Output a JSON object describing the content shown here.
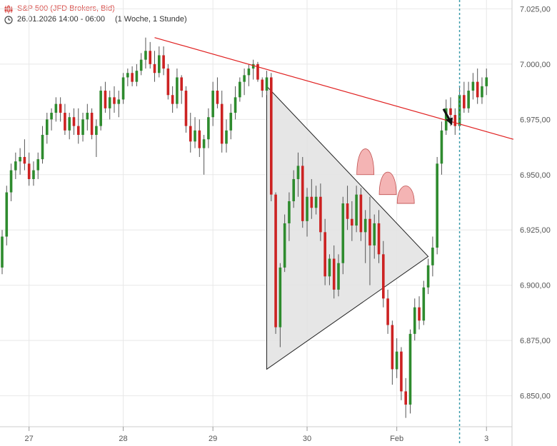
{
  "header": {
    "instrument": "S&P 500 (JFD Brokers, Bid)",
    "datetime": "26.01.2026 14:00 - 06:00",
    "period": "(1 Woche, 1 Stunde)",
    "icons": {
      "instrument": "candlestick-icon",
      "time": "clock-icon"
    }
  },
  "colors": {
    "up": "#2e8b2e",
    "down": "#cc2222",
    "trend": "#e02020",
    "triangle": "#e2e2e2",
    "arrow": "#111111",
    "dotted": "#3a9aaa",
    "heads": "#f4b4b4"
  },
  "chart_data": {
    "type": "candlestick",
    "title": "",
    "xlabel": "",
    "ylabel": "",
    "ylim": [
      6836,
      7029
    ],
    "yticks": [
      6850,
      6875,
      6900,
      6925,
      6950,
      6975,
      7000,
      7025
    ],
    "ytick_labels": [
      "6.850,00",
      "6.875,00",
      "6.900,00",
      "6.925,00",
      "6.950,00",
      "6.975,00",
      "7.000,00",
      "7.025,00"
    ],
    "x_tick_labels": [
      {
        "label": "27",
        "bar": 6
      },
      {
        "label": "28",
        "bar": 27
      },
      {
        "label": "29",
        "bar": 47
      },
      {
        "label": "30",
        "bar": 68
      },
      {
        "label": "Feb",
        "bar": 88
      },
      {
        "label": "3",
        "bar": 108
      }
    ],
    "ohlc": [
      [
        6908,
        6925,
        6905,
        6922
      ],
      [
        6922,
        6945,
        6918,
        6942
      ],
      [
        6942,
        6955,
        6938,
        6952
      ],
      [
        6952,
        6960,
        6948,
        6956
      ],
      [
        6956,
        6962,
        6950,
        6958
      ],
      [
        6958,
        6966,
        6952,
        6955
      ],
      [
        6955,
        6960,
        6945,
        6948
      ],
      [
        6948,
        6956,
        6945,
        6952
      ],
      [
        6952,
        6960,
        6948,
        6957
      ],
      [
        6957,
        6972,
        6955,
        6968
      ],
      [
        6968,
        6978,
        6964,
        6975
      ],
      [
        6975,
        6980,
        6970,
        6978
      ],
      [
        6978,
        6985,
        6974,
        6982
      ],
      [
        6982,
        6985,
        6974,
        6978
      ],
      [
        6978,
        6982,
        6968,
        6970
      ],
      [
        6970,
        6978,
        6966,
        6976
      ],
      [
        6976,
        6980,
        6968,
        6972
      ],
      [
        6972,
        6980,
        6964,
        6968
      ],
      [
        6968,
        6978,
        6965,
        6975
      ],
      [
        6975,
        6982,
        6970,
        6978
      ],
      [
        6978,
        6980,
        6966,
        6968
      ],
      [
        6968,
        6975,
        6958,
        6972
      ],
      [
        6972,
        6990,
        6970,
        6988
      ],
      [
        6988,
        6992,
        6978,
        6980
      ],
      [
        6980,
        6988,
        6975,
        6985
      ],
      [
        6985,
        6990,
        6978,
        6982
      ],
      [
        6982,
        6988,
        6976,
        6984
      ],
      [
        6984,
        6996,
        6982,
        6994
      ],
      [
        6994,
        6998,
        6990,
        6996
      ],
      [
        6996,
        6999,
        6990,
        6992
      ],
      [
        6992,
        7000,
        6990,
        6997
      ],
      [
        6997,
        7005,
        6995,
        7002
      ],
      [
        7002,
        7012,
        6998,
        7006
      ],
      [
        7006,
        7010,
        6998,
        7000
      ],
      [
        7000,
        7006,
        6992,
        6996
      ],
      [
        6996,
        7008,
        6994,
        7004
      ],
      [
        7004,
        7008,
        6995,
        6998
      ],
      [
        6998,
        7000,
        6984,
        6986
      ],
      [
        6986,
        6990,
        6978,
        6982
      ],
      [
        6982,
        6998,
        6980,
        6994
      ],
      [
        6994,
        6995,
        6982,
        6988
      ],
      [
        6988,
        6990,
        6969,
        6972
      ],
      [
        6972,
        6978,
        6960,
        6965
      ],
      [
        6965,
        6976,
        6962,
        6970
      ],
      [
        6970,
        6975,
        6958,
        6962
      ],
      [
        6962,
        6968,
        6950,
        6966
      ],
      [
        6966,
        6980,
        6962,
        6976
      ],
      [
        6976,
        6992,
        6972,
        6988
      ],
      [
        6988,
        6994,
        6980,
        6982
      ],
      [
        6982,
        6988,
        6960,
        6964
      ],
      [
        6964,
        6975,
        6960,
        6970
      ],
      [
        6970,
        6982,
        6966,
        6978
      ],
      [
        6978,
        6990,
        6975,
        6985
      ],
      [
        6985,
        6994,
        6983,
        6992
      ],
      [
        6992,
        6998,
        6986,
        6995
      ],
      [
        6995,
        7000,
        6990,
        6998
      ],
      [
        6998,
        7002,
        6993,
        7000
      ],
      [
        7000,
        7001,
        6992,
        6993
      ],
      [
        6993,
        6994,
        6985,
        6988
      ],
      [
        6988,
        6997,
        6986,
        6994
      ],
      [
        6994,
        6996,
        6938,
        6941
      ],
      [
        6941,
        6942,
        6878,
        6881
      ],
      [
        6881,
        6910,
        6872,
        6908
      ],
      [
        6908,
        6932,
        6906,
        6928
      ],
      [
        6928,
        6942,
        6920,
        6938
      ],
      [
        6938,
        6952,
        6935,
        6948
      ],
      [
        6948,
        6960,
        6940,
        6954
      ],
      [
        6954,
        6958,
        6926,
        6929
      ],
      [
        6929,
        6944,
        6922,
        6940
      ],
      [
        6940,
        6948,
        6930,
        6935
      ],
      [
        6935,
        6945,
        6932,
        6940
      ],
      [
        6940,
        6946,
        6920,
        6924
      ],
      [
        6924,
        6930,
        6900,
        6904
      ],
      [
        6904,
        6914,
        6900,
        6912
      ],
      [
        6912,
        6918,
        6894,
        6898
      ],
      [
        6898,
        6914,
        6895,
        6910
      ],
      [
        6910,
        6940,
        6905,
        6937
      ],
      [
        6937,
        6945,
        6925,
        6930
      ],
      [
        6930,
        6938,
        6920,
        6927
      ],
      [
        6927,
        6945,
        6924,
        6941
      ],
      [
        6941,
        6944,
        6920,
        6924
      ],
      [
        6924,
        6934,
        6910,
        6930
      ],
      [
        6930,
        6940,
        6900,
        6918
      ],
      [
        6918,
        6932,
        6912,
        6928
      ],
      [
        6928,
        6934,
        6910,
        6914
      ],
      [
        6914,
        6920,
        6890,
        6894
      ],
      [
        6894,
        6898,
        6878,
        6882
      ],
      [
        6882,
        6884,
        6855,
        6862
      ],
      [
        6862,
        6876,
        6858,
        6870
      ],
      [
        6870,
        6872,
        6848,
        6852
      ],
      [
        6852,
        6858,
        6840,
        6846
      ],
      [
        6846,
        6880,
        6842,
        6878
      ],
      [
        6878,
        6894,
        6875,
        6890
      ],
      [
        6890,
        6895,
        6880,
        6884
      ],
      [
        6884,
        6902,
        6882,
        6899
      ],
      [
        6899,
        6912,
        6896,
        6909
      ],
      [
        6909,
        6922,
        6904,
        6917
      ],
      [
        6917,
        6958,
        6914,
        6955
      ],
      [
        6955,
        6974,
        6950,
        6970
      ],
      [
        6970,
        6984,
        6968,
        6980
      ],
      [
        6980,
        6985,
        6972,
        6977
      ],
      [
        6977,
        6980,
        6968,
        6972
      ],
      [
        6972,
        6990,
        6970,
        6986
      ],
      [
        6986,
        6992,
        6978,
        6980
      ],
      [
        6980,
        6992,
        6978,
        6988
      ],
      [
        6988,
        6996,
        6984,
        6992
      ],
      [
        6992,
        6998,
        6982,
        6985
      ],
      [
        6985,
        6994,
        6982,
        6990
      ],
      [
        6990,
        6998,
        6986,
        6994
      ]
    ]
  }
}
